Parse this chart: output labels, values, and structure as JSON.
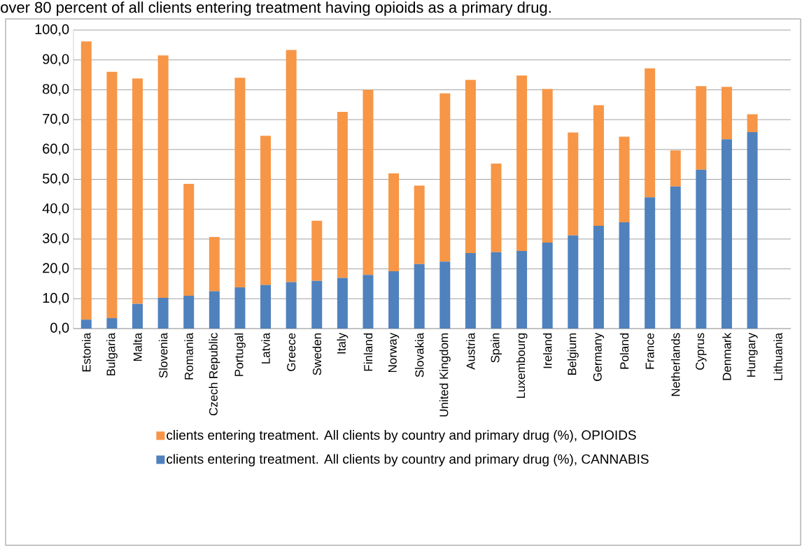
{
  "chart_data": {
    "type": "bar",
    "stacked": true,
    "annotations": [
      "over 80 percent of all clients entering treatment having opioids as a primary drug."
    ],
    "categories": [
      "Estonia",
      "Bulgaria",
      "Malta",
      "Slovenia",
      "Romania",
      "Czech Republic",
      "Portugal",
      "Latvia",
      "Greece",
      "Sweden",
      "Italy",
      "Finland",
      "Norway",
      "Slovakia",
      "United Kingdom",
      "Austria",
      "Spain",
      "Luxembourg",
      "Ireland",
      "Belgium",
      "Germany",
      "Poland",
      "France",
      "Netherlands",
      "Cyprus",
      "Denmark",
      "Hungary",
      "Lithuania"
    ],
    "series": [
      {
        "name": "clients entering treatment. All clients by country and primary drug (%), CANNABIS",
        "color": "#4f81bd",
        "values": [
          3.0,
          3.5,
          8.3,
          10.3,
          11.0,
          12.5,
          13.8,
          14.6,
          15.6,
          16.0,
          17.0,
          18.0,
          19.2,
          21.6,
          22.4,
          25.3,
          25.6,
          26.0,
          28.8,
          31.2,
          34.4,
          35.6,
          44.0,
          47.6,
          53.2,
          63.4,
          65.8,
          null
        ]
      },
      {
        "name": "clients entering treatment. All clients by country and primary drug (%), OPIOIDS",
        "color": "#f79646",
        "values": [
          93.2,
          82.5,
          75.5,
          81.2,
          37.5,
          18.2,
          70.2,
          50.0,
          77.7,
          20.1,
          55.6,
          62.0,
          32.8,
          26.3,
          56.4,
          58.0,
          29.7,
          58.8,
          51.5,
          34.5,
          40.4,
          28.7,
          43.2,
          12.1,
          28.0,
          17.6,
          6.0,
          null
        ]
      }
    ],
    "ylim": [
      0,
      100
    ],
    "yticks": [
      {
        "value": 0,
        "label": "0,0"
      },
      {
        "value": 10,
        "label": "10,0"
      },
      {
        "value": 20,
        "label": "20,0"
      },
      {
        "value": 30,
        "label": "30,0"
      },
      {
        "value": 40,
        "label": "40,0"
      },
      {
        "value": 50,
        "label": "50,0"
      },
      {
        "value": 60,
        "label": "60,0"
      },
      {
        "value": 70,
        "label": "70,0"
      },
      {
        "value": 80,
        "label": "80,0"
      },
      {
        "value": 90,
        "label": "90,0"
      },
      {
        "value": 100,
        "label": "100,0"
      }
    ],
    "grid": "y",
    "legend": "bottom"
  }
}
